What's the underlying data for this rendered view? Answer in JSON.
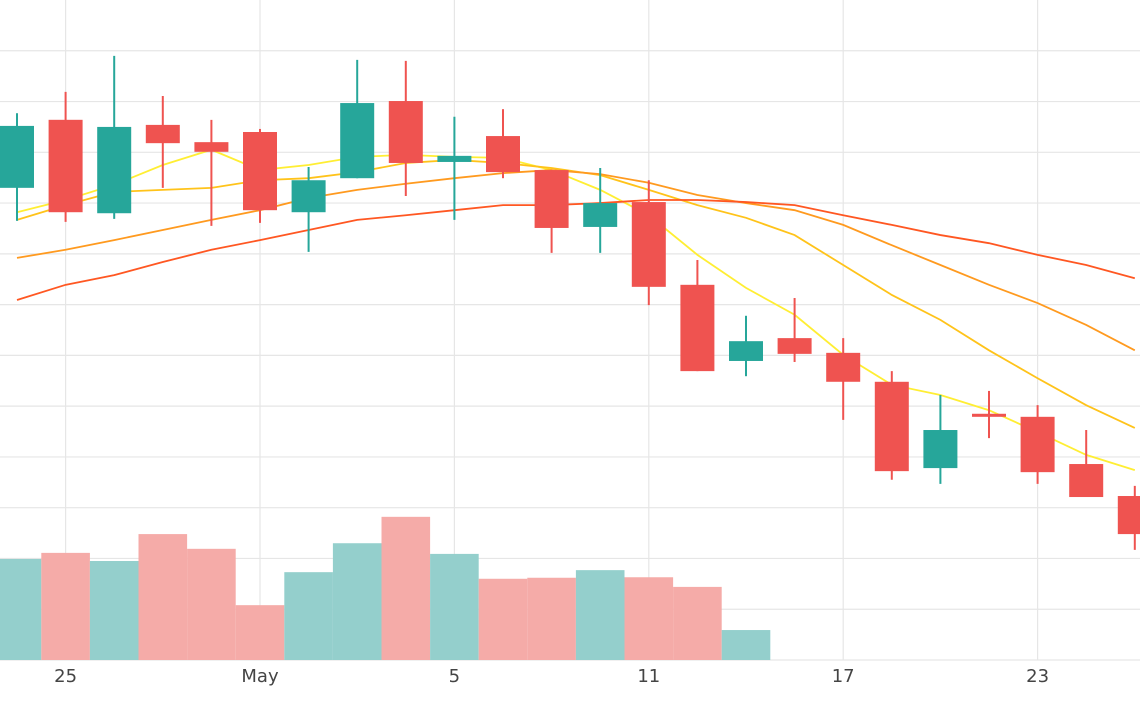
{
  "chart_data": {
    "type": "candlestick",
    "categories": [
      null,
      "25",
      null,
      null,
      null,
      "May",
      null,
      null,
      null,
      "5",
      null,
      null,
      null,
      "11",
      null,
      null,
      null,
      "17",
      null,
      null,
      null,
      "23",
      null,
      null
    ],
    "open": [
      9.3,
      10.64,
      8.8,
      10.54,
      10.2,
      10.4,
      8.82,
      9.49,
      11.01,
      9.81,
      10.32,
      9.65,
      8.53,
      9.02,
      7.39,
      5.89,
      6.34,
      6.05,
      5.48,
      3.78,
      4.85,
      4.79,
      3.86,
      3.23
    ],
    "high": [
      10.77,
      11.19,
      11.9,
      11.11,
      10.64,
      10.46,
      9.71,
      11.82,
      11.8,
      10.7,
      10.85,
      9.65,
      9.69,
      9.45,
      7.88,
      6.78,
      7.13,
      6.34,
      5.69,
      5.22,
      5.3,
      5.02,
      4.53,
      3.43
    ],
    "low": [
      8.65,
      8.63,
      8.69,
      9.3,
      8.55,
      8.61,
      8.04,
      9.49,
      9.14,
      8.67,
      9.49,
      8.02,
      8.02,
      6.99,
      5.69,
      5.59,
      5.87,
      4.73,
      3.55,
      3.47,
      4.37,
      3.47,
      3.21,
      2.17
    ],
    "close": [
      10.52,
      8.82,
      10.5,
      10.18,
      10.01,
      8.86,
      9.45,
      10.97,
      9.79,
      9.93,
      9.61,
      8.51,
      9.0,
      7.35,
      5.69,
      6.28,
      6.03,
      5.48,
      3.72,
      4.53,
      4.79,
      3.7,
      3.21,
      2.48
    ],
    "up_color": "#26a69a",
    "down_color": "#ef5350",
    "volume": {
      "values": [
        1.99,
        2.11,
        1.95,
        2.48,
        2.19,
        1.08,
        1.73,
        2.3,
        2.82,
        2.09,
        1.6,
        1.62,
        1.77,
        1.63,
        1.44,
        0.59,
        null,
        null,
        null,
        null,
        null,
        null,
        null,
        null
      ],
      "up_color": "#94cfcc",
      "down_color": "#f5aba8"
    },
    "lines": [
      {
        "color": "#ffee33",
        "values": [
          8.82,
          9.06,
          9.36,
          9.75,
          10.05,
          9.65,
          9.75,
          9.91,
          9.95,
          9.91,
          9.89,
          9.65,
          9.26,
          8.76,
          7.98,
          7.33,
          6.8,
          6.01,
          5.42,
          5.22,
          4.92,
          4.49,
          4.04,
          3.74
        ]
      },
      {
        "color": "#ffc31a",
        "values": [
          8.67,
          8.96,
          9.22,
          9.26,
          9.3,
          9.45,
          9.49,
          9.61,
          9.79,
          9.85,
          9.79,
          9.69,
          9.55,
          9.26,
          8.96,
          8.71,
          8.37,
          7.78,
          7.19,
          6.7,
          6.1,
          5.55,
          5.02,
          4.57
        ]
      },
      {
        "color": "#ff9a1f",
        "values": [
          7.92,
          8.08,
          8.27,
          8.47,
          8.67,
          8.86,
          9.1,
          9.26,
          9.38,
          9.49,
          9.59,
          9.65,
          9.57,
          9.4,
          9.16,
          9.0,
          8.86,
          8.57,
          8.17,
          7.78,
          7.39,
          7.03,
          6.6,
          6.1
        ]
      },
      {
        "color": "#ff5722",
        "values": [
          7.09,
          7.39,
          7.58,
          7.84,
          8.08,
          8.27,
          8.47,
          8.67,
          8.76,
          8.86,
          8.96,
          8.96,
          9.0,
          9.06,
          9.06,
          9.02,
          8.96,
          8.76,
          8.57,
          8.37,
          8.21,
          7.98,
          7.78,
          7.52
        ]
      }
    ],
    "ylim": [
      0,
      13
    ],
    "yticks": [
      0,
      1,
      2,
      3,
      4,
      5,
      6,
      7,
      8,
      9,
      10,
      11,
      12
    ],
    "grid": true
  }
}
